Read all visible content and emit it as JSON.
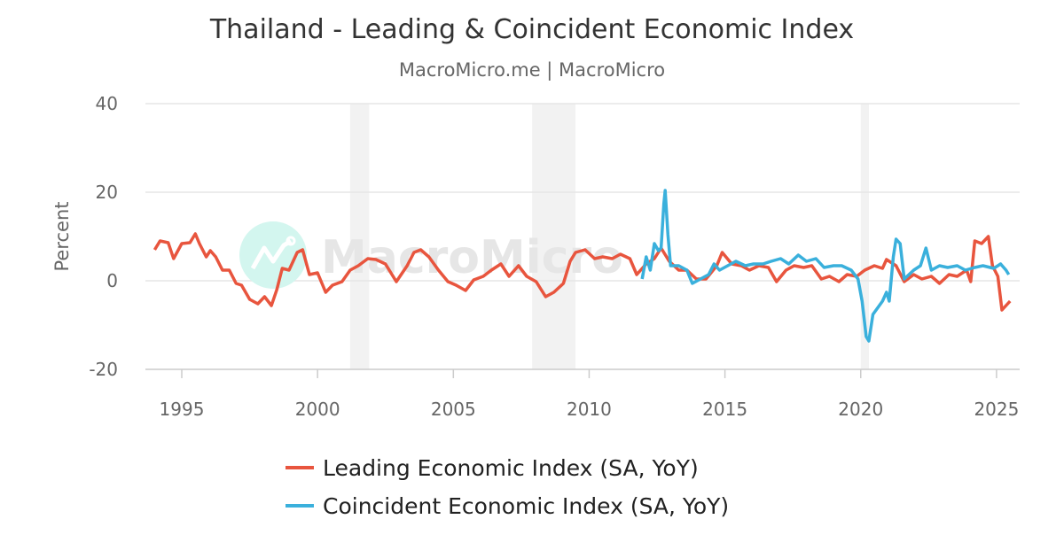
{
  "chart_data": {
    "type": "line",
    "title": "Thailand - Leading & Coincident Economic Index",
    "subtitle": "MacroMicro.me | MacroMicro",
    "ylabel": "Percent",
    "xlabel": "",
    "xlim": [
      1993.8,
      2025.85
    ],
    "ylim": [
      -20,
      40
    ],
    "x_ticks": [
      "1995",
      "2000",
      "2005",
      "2010",
      "2015",
      "2020",
      "2025"
    ],
    "y_ticks": [
      "40",
      "20",
      "0",
      "-20"
    ],
    "grid": "horizontal",
    "legend_placement": "bottom",
    "recession_shading": [
      [
        2001.2,
        2001.9
      ],
      [
        2007.9,
        2009.5
      ],
      [
        2020.0,
        2020.3
      ]
    ],
    "watermark": "MacroMicro",
    "series": [
      {
        "name": "Leading Economic Index (SA, YoY)",
        "color": "#e8553e",
        "points": [
          [
            1994.0,
            7
          ],
          [
            1994.2,
            9
          ],
          [
            1994.5,
            8.6
          ],
          [
            1994.7,
            5
          ],
          [
            1995.0,
            8.4
          ],
          [
            1995.3,
            8.6
          ],
          [
            1995.5,
            10.6
          ],
          [
            1995.65,
            8.4
          ],
          [
            1995.9,
            5.4
          ],
          [
            1996.05,
            6.8
          ],
          [
            1996.25,
            5.4
          ],
          [
            1996.5,
            2.4
          ],
          [
            1996.75,
            2.4
          ],
          [
            1997.0,
            -0.6
          ],
          [
            1997.2,
            -1
          ],
          [
            1997.5,
            -4.2
          ],
          [
            1997.8,
            -5.2
          ],
          [
            1998.05,
            -3.6
          ],
          [
            1998.3,
            -5.6
          ],
          [
            1998.5,
            -2
          ],
          [
            1998.7,
            2.8
          ],
          [
            1998.95,
            2.4
          ],
          [
            1999.25,
            6.4
          ],
          [
            1999.45,
            7
          ],
          [
            1999.7,
            1.4
          ],
          [
            2000.0,
            1.8
          ],
          [
            2000.3,
            -2.6
          ],
          [
            2000.55,
            -1
          ],
          [
            2000.9,
            -0.2
          ],
          [
            2001.2,
            2.4
          ],
          [
            2001.5,
            3.4
          ],
          [
            2001.85,
            5
          ],
          [
            2002.15,
            4.8
          ],
          [
            2002.5,
            3.8
          ],
          [
            2002.9,
            -0.2
          ],
          [
            2003.3,
            3.4
          ],
          [
            2003.55,
            6.4
          ],
          [
            2003.8,
            7
          ],
          [
            2004.1,
            5.4
          ],
          [
            2004.45,
            2.4
          ],
          [
            2004.8,
            -0.2
          ],
          [
            2005.1,
            -1
          ],
          [
            2005.45,
            -2.2
          ],
          [
            2005.75,
            0.2
          ],
          [
            2006.1,
            1
          ],
          [
            2006.4,
            2.4
          ],
          [
            2006.75,
            3.8
          ],
          [
            2007.05,
            1
          ],
          [
            2007.4,
            3.4
          ],
          [
            2007.7,
            1
          ],
          [
            2008.05,
            -0.2
          ],
          [
            2008.4,
            -3.6
          ],
          [
            2008.7,
            -2.6
          ],
          [
            2009.05,
            -0.6
          ],
          [
            2009.3,
            4.4
          ],
          [
            2009.5,
            6.4
          ],
          [
            2009.85,
            7
          ],
          [
            2010.2,
            5
          ],
          [
            2010.5,
            5.4
          ],
          [
            2010.85,
            5
          ],
          [
            2011.15,
            6
          ],
          [
            2011.5,
            5
          ],
          [
            2011.75,
            1.4
          ],
          [
            2012.1,
            3.8
          ],
          [
            2012.4,
            5
          ],
          [
            2012.65,
            7.4
          ],
          [
            2012.95,
            4.4
          ],
          [
            2013.3,
            2.4
          ],
          [
            2013.6,
            2.4
          ],
          [
            2013.95,
            0.4
          ],
          [
            2014.3,
            0.4
          ],
          [
            2014.7,
            3.4
          ],
          [
            2014.9,
            6.4
          ],
          [
            2015.25,
            3.8
          ],
          [
            2015.6,
            3.4
          ],
          [
            2015.9,
            2.4
          ],
          [
            2016.25,
            3.4
          ],
          [
            2016.6,
            3
          ],
          [
            2016.9,
            -0.2
          ],
          [
            2017.25,
            2.4
          ],
          [
            2017.55,
            3.4
          ],
          [
            2017.9,
            3
          ],
          [
            2018.2,
            3.4
          ],
          [
            2018.55,
            0.4
          ],
          [
            2018.85,
            1
          ],
          [
            2019.2,
            -0.2
          ],
          [
            2019.5,
            1.4
          ],
          [
            2019.85,
            1
          ],
          [
            2020.15,
            2.4
          ],
          [
            2020.5,
            3.4
          ],
          [
            2020.8,
            2.8
          ],
          [
            2020.95,
            4.8
          ],
          [
            2021.3,
            3.4
          ],
          [
            2021.6,
            -0.2
          ],
          [
            2021.95,
            1.4
          ],
          [
            2022.25,
            0.4
          ],
          [
            2022.6,
            1
          ],
          [
            2022.9,
            -0.6
          ],
          [
            2023.25,
            1.4
          ],
          [
            2023.55,
            1
          ],
          [
            2023.9,
            2.4
          ],
          [
            2024.05,
            -0.2
          ],
          [
            2024.2,
            9
          ],
          [
            2024.45,
            8.4
          ],
          [
            2024.7,
            10
          ],
          [
            2024.85,
            3.4
          ],
          [
            2025.05,
            1
          ],
          [
            2025.2,
            -6.6
          ],
          [
            2025.35,
            -5.6
          ],
          [
            2025.5,
            -4.6
          ]
        ]
      },
      {
        "name": "Coincident Economic Index (SA, YoY)",
        "color": "#3ab0dc",
        "points": [
          [
            2011.95,
            0.4
          ],
          [
            2012.1,
            5.4
          ],
          [
            2012.25,
            2.4
          ],
          [
            2012.4,
            8.4
          ],
          [
            2012.55,
            6.8
          ],
          [
            2012.65,
            7.4
          ],
          [
            2012.75,
            17.4
          ],
          [
            2012.8,
            20.4
          ],
          [
            2012.9,
            10.4
          ],
          [
            2013.0,
            3.4
          ],
          [
            2013.3,
            3.4
          ],
          [
            2013.6,
            2.4
          ],
          [
            2013.8,
            -0.6
          ],
          [
            2014.1,
            0.4
          ],
          [
            2014.4,
            1.4
          ],
          [
            2014.6,
            3.8
          ],
          [
            2014.8,
            2.4
          ],
          [
            2015.1,
            3.4
          ],
          [
            2015.4,
            4.4
          ],
          [
            2015.75,
            3.4
          ],
          [
            2016.05,
            3.8
          ],
          [
            2016.4,
            3.8
          ],
          [
            2016.7,
            4.4
          ],
          [
            2017.05,
            5
          ],
          [
            2017.35,
            3.8
          ],
          [
            2017.7,
            5.8
          ],
          [
            2018.0,
            4.4
          ],
          [
            2018.35,
            5
          ],
          [
            2018.65,
            3
          ],
          [
            2019.0,
            3.4
          ],
          [
            2019.3,
            3.4
          ],
          [
            2019.65,
            2.4
          ],
          [
            2019.9,
            0.4
          ],
          [
            2020.05,
            -4.6
          ],
          [
            2020.2,
            -12.6
          ],
          [
            2020.3,
            -13.6
          ],
          [
            2020.45,
            -7.6
          ],
          [
            2020.8,
            -4.6
          ],
          [
            2020.95,
            -2.6
          ],
          [
            2021.05,
            -4.6
          ],
          [
            2021.2,
            5.4
          ],
          [
            2021.3,
            9.4
          ],
          [
            2021.45,
            8.4
          ],
          [
            2021.6,
            0.4
          ],
          [
            2021.95,
            2.4
          ],
          [
            2022.2,
            3.4
          ],
          [
            2022.4,
            7.4
          ],
          [
            2022.6,
            2.4
          ],
          [
            2022.9,
            3.4
          ],
          [
            2023.2,
            3
          ],
          [
            2023.55,
            3.4
          ],
          [
            2023.85,
            2.4
          ],
          [
            2024.2,
            3
          ],
          [
            2024.5,
            3.4
          ],
          [
            2024.9,
            2.8
          ],
          [
            2025.15,
            3.8
          ],
          [
            2025.35,
            2.4
          ],
          [
            2025.45,
            1.4
          ]
        ]
      }
    ]
  }
}
